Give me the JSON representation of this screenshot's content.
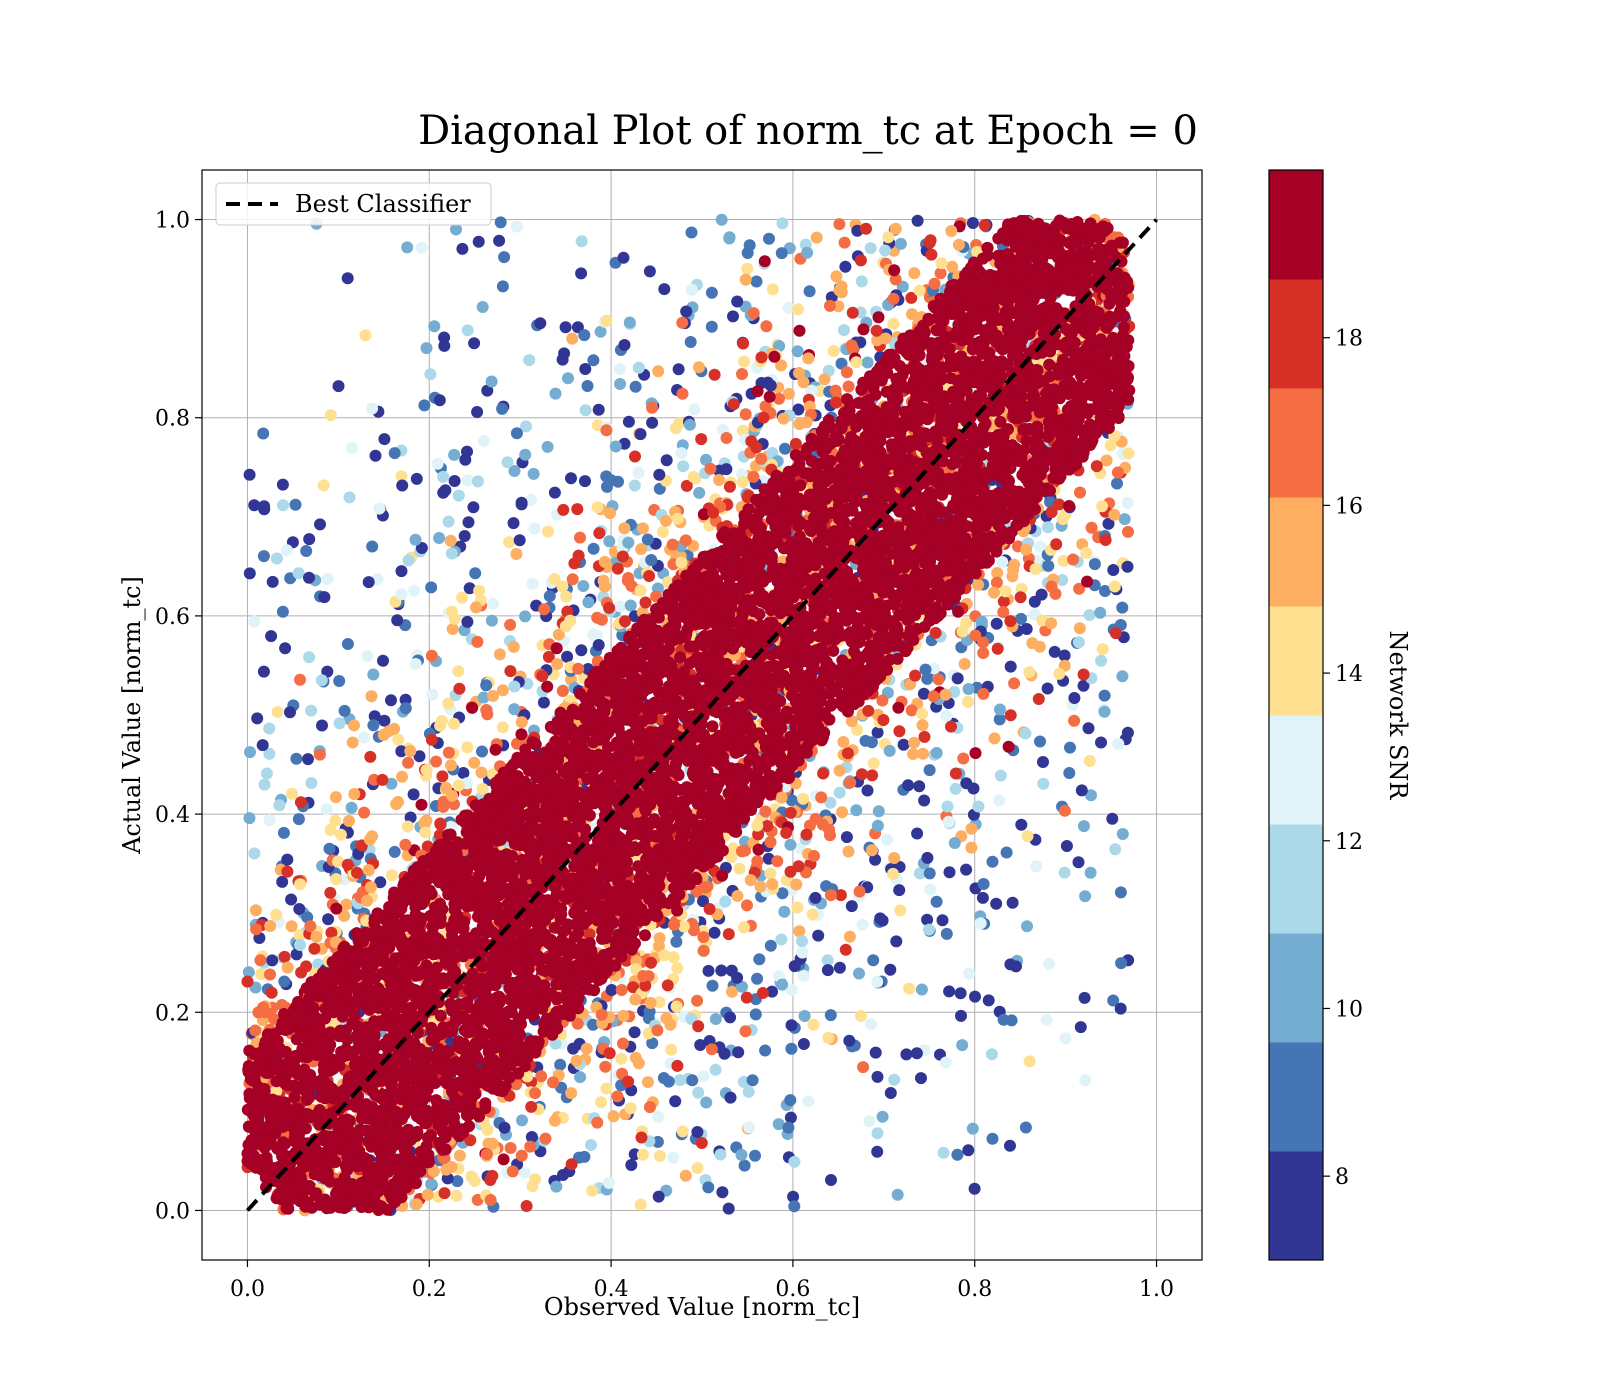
{
  "chart_data": {
    "type": "scatter",
    "title": "Diagonal Plot of norm_tc at Epoch = 0",
    "xlabel": "Observed Value [norm_tc]",
    "ylabel": "Actual Value [norm_tc]",
    "xlim": [
      -0.05,
      1.05
    ],
    "ylim": [
      -0.05,
      1.05
    ],
    "xticks": [
      "0.0",
      "0.2",
      "0.4",
      "0.6",
      "0.8",
      "1.0"
    ],
    "yticks": [
      "0.0",
      "0.2",
      "0.4",
      "0.6",
      "0.8",
      "1.0"
    ],
    "grid": true,
    "legend": {
      "placement": "top-left",
      "entries": [
        "Best Classifier"
      ]
    },
    "reference_line": {
      "name": "Best Classifier",
      "x": [
        0,
        1
      ],
      "y": [
        0,
        1
      ],
      "style": "dashed",
      "color": "#000000"
    },
    "colorbar": {
      "label": "Network SNR",
      "range": [
        7,
        20
      ],
      "ticks": [
        "8",
        "10",
        "12",
        "14",
        "16",
        "18"
      ],
      "bands": [
        "#313695",
        "#4575b4",
        "#74add1",
        "#abd9e9",
        "#e0f3f8",
        "#fee090",
        "#fdae61",
        "#f46d43",
        "#d73027",
        "#a50026"
      ]
    },
    "series_description": {
      "color_by": "Network SNR",
      "x_range": [
        0.0,
        0.97
      ],
      "y_range": [
        0.0,
        1.0
      ],
      "high_snr_band_halfwidth": 0.08
    }
  }
}
